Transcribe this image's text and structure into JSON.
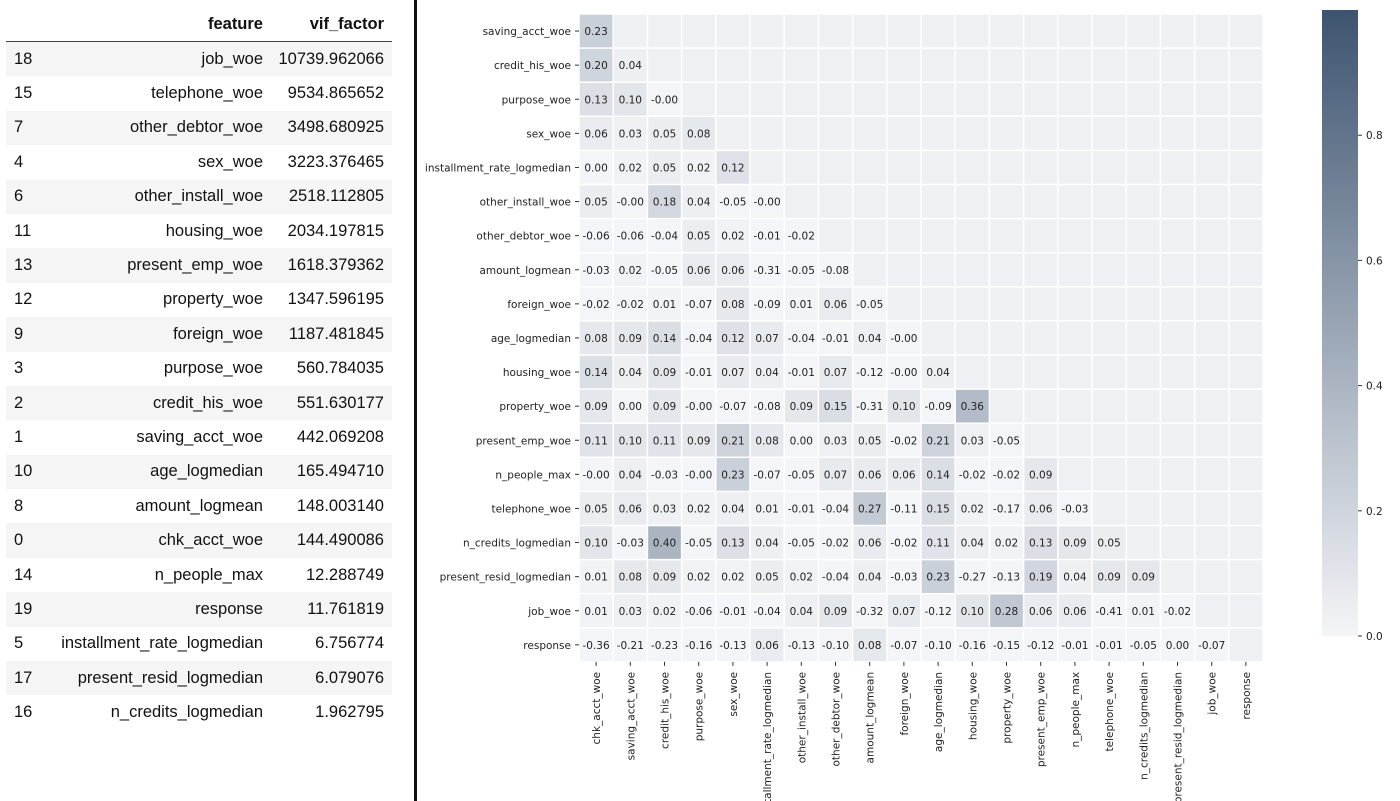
{
  "vif_table": {
    "columns": [
      "",
      "feature",
      "vif_factor"
    ],
    "rows": [
      {
        "index": "18",
        "feature": "job_woe",
        "vif_factor": "10739.962066"
      },
      {
        "index": "15",
        "feature": "telephone_woe",
        "vif_factor": "9534.865652"
      },
      {
        "index": "7",
        "feature": "other_debtor_woe",
        "vif_factor": "3498.680925"
      },
      {
        "index": "4",
        "feature": "sex_woe",
        "vif_factor": "3223.376465"
      },
      {
        "index": "6",
        "feature": "other_install_woe",
        "vif_factor": "2518.112805"
      },
      {
        "index": "11",
        "feature": "housing_woe",
        "vif_factor": "2034.197815"
      },
      {
        "index": "13",
        "feature": "present_emp_woe",
        "vif_factor": "1618.379362"
      },
      {
        "index": "12",
        "feature": "property_woe",
        "vif_factor": "1347.596195"
      },
      {
        "index": "9",
        "feature": "foreign_woe",
        "vif_factor": "1187.481845"
      },
      {
        "index": "3",
        "feature": "purpose_woe",
        "vif_factor": "560.784035"
      },
      {
        "index": "2",
        "feature": "credit_his_woe",
        "vif_factor": "551.630177"
      },
      {
        "index": "1",
        "feature": "saving_acct_woe",
        "vif_factor": "442.069208"
      },
      {
        "index": "10",
        "feature": "age_logmedian",
        "vif_factor": "165.494710"
      },
      {
        "index": "8",
        "feature": "amount_logmean",
        "vif_factor": "148.003140"
      },
      {
        "index": "0",
        "feature": "chk_acct_woe",
        "vif_factor": "144.490086"
      },
      {
        "index": "14",
        "feature": "n_people_max",
        "vif_factor": "12.288749"
      },
      {
        "index": "19",
        "feature": "response",
        "vif_factor": "11.761819"
      },
      {
        "index": "5",
        "feature": "installment_rate_logmedian",
        "vif_factor": "6.756774"
      },
      {
        "index": "17",
        "feature": "present_resid_logmedian",
        "vif_factor": "6.079076"
      },
      {
        "index": "16",
        "feature": "n_credits_logmedian",
        "vif_factor": "1.962795"
      }
    ]
  },
  "chart_data": {
    "type": "heatmap",
    "mask": "lower-triangle",
    "x_labels": [
      "chk_acct_woe",
      "saving_acct_woe",
      "credit_his_woe",
      "purpose_woe",
      "sex_woe",
      "installment_rate_logmedian",
      "other_install_woe",
      "other_debtor_woe",
      "amount_logmean",
      "foreign_woe",
      "age_logmedian",
      "housing_woe",
      "property_woe",
      "present_emp_woe",
      "n_people_max",
      "telephone_woe",
      "n_credits_logmedian",
      "present_resid_logmedian",
      "job_woe",
      "response"
    ],
    "y_labels": [
      "saving_acct_woe",
      "credit_his_woe",
      "purpose_woe",
      "sex_woe",
      "installment_rate_logmedian",
      "other_install_woe",
      "other_debtor_woe",
      "amount_logmean",
      "foreign_woe",
      "age_logmedian",
      "housing_woe",
      "property_woe",
      "present_emp_woe",
      "n_people_max",
      "telephone_woe",
      "n_credits_logmedian",
      "present_resid_logmedian",
      "job_woe",
      "response"
    ],
    "values": [
      [
        "0.23"
      ],
      [
        "0.20",
        "0.04"
      ],
      [
        "0.13",
        "0.10",
        "-0.00"
      ],
      [
        "0.06",
        "0.03",
        "0.05",
        "0.08"
      ],
      [
        "0.00",
        "0.02",
        "0.05",
        "0.02",
        "0.12"
      ],
      [
        "0.05",
        "-0.00",
        "0.18",
        "0.04",
        "-0.05",
        "-0.00"
      ],
      [
        "-0.06",
        "-0.06",
        "-0.04",
        "0.05",
        "0.02",
        "-0.01",
        "-0.02"
      ],
      [
        "-0.03",
        "0.02",
        "-0.05",
        "0.06",
        "0.06",
        "-0.31",
        "-0.05",
        "-0.08"
      ],
      [
        "-0.02",
        "-0.02",
        "0.01",
        "-0.07",
        "0.08",
        "-0.09",
        "0.01",
        "0.06",
        "-0.05"
      ],
      [
        "0.08",
        "0.09",
        "0.14",
        "-0.04",
        "0.12",
        "0.07",
        "-0.04",
        "-0.01",
        "0.04",
        "-0.00"
      ],
      [
        "0.14",
        "0.04",
        "0.09",
        "-0.01",
        "0.07",
        "0.04",
        "-0.01",
        "0.07",
        "-0.12",
        "-0.00",
        "0.04"
      ],
      [
        "0.09",
        "0.00",
        "0.09",
        "-0.00",
        "-0.07",
        "-0.08",
        "0.09",
        "0.15",
        "-0.31",
        "0.10",
        "-0.09",
        "0.36"
      ],
      [
        "0.11",
        "0.10",
        "0.11",
        "0.09",
        "0.21",
        "0.08",
        "0.00",
        "0.03",
        "0.05",
        "-0.02",
        "0.21",
        "0.03",
        "-0.05"
      ],
      [
        "-0.00",
        "0.04",
        "-0.03",
        "-0.00",
        "0.23",
        "-0.07",
        "-0.05",
        "0.07",
        "0.06",
        "0.06",
        "0.14",
        "-0.02",
        "-0.02",
        "0.09"
      ],
      [
        "0.05",
        "0.06",
        "0.03",
        "0.02",
        "0.04",
        "0.01",
        "-0.01",
        "-0.04",
        "0.27",
        "-0.11",
        "0.15",
        "0.02",
        "-0.17",
        "0.06",
        "-0.03"
      ],
      [
        "0.10",
        "-0.03",
        "0.40",
        "-0.05",
        "0.13",
        "0.04",
        "-0.05",
        "-0.02",
        "0.06",
        "-0.02",
        "0.11",
        "0.04",
        "0.02",
        "0.13",
        "0.09",
        "0.05"
      ],
      [
        "0.01",
        "0.08",
        "0.09",
        "0.02",
        "0.02",
        "0.05",
        "0.02",
        "-0.04",
        "0.04",
        "-0.03",
        "0.23",
        "-0.27",
        "-0.13",
        "0.19",
        "0.04",
        "0.09",
        "0.09"
      ],
      [
        "0.01",
        "0.03",
        "0.02",
        "-0.06",
        "-0.01",
        "-0.04",
        "0.04",
        "0.09",
        "-0.32",
        "0.07",
        "-0.12",
        "0.10",
        "0.28",
        "0.06",
        "0.06",
        "-0.41",
        "0.01",
        "-0.02"
      ],
      [
        "-0.36",
        "-0.21",
        "-0.23",
        "-0.16",
        "-0.13",
        "0.06",
        "-0.13",
        "-0.10",
        "0.08",
        "-0.07",
        "-0.10",
        "-0.16",
        "-0.15",
        "-0.12",
        "-0.01",
        "-0.01",
        "-0.05",
        "0.00",
        "-0.07"
      ]
    ],
    "colorbar": {
      "min": 0.0,
      "max": 1.0,
      "ticks": [
        "0.0",
        "0.2",
        "0.4",
        "0.6",
        "0.8"
      ],
      "low_color": "#f4f5f8",
      "high_color": "#3d5470"
    }
  }
}
